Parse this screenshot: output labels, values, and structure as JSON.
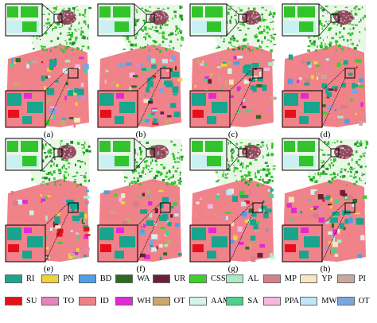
{
  "panels": [
    {
      "label": "(a)",
      "variant": 0
    },
    {
      "label": "(b)",
      "variant": 1
    },
    {
      "label": "(c)",
      "variant": 2
    },
    {
      "label": "(d)",
      "variant": 3
    },
    {
      "label": "(e)",
      "variant": 4
    },
    {
      "label": "(f)",
      "variant": 5
    },
    {
      "label": "(g)",
      "variant": 6
    },
    {
      "label": "(h)",
      "variant": 7
    }
  ],
  "legend": [
    {
      "code": "RI",
      "color": "#1aa58c"
    },
    {
      "code": "PN",
      "color": "#f2d23a"
    },
    {
      "code": "BD",
      "color": "#4e9ee8"
    },
    {
      "code": "WA",
      "color": "#2b6b1e"
    },
    {
      "code": "UR",
      "color": "#6a2036"
    },
    {
      "code": "CSS",
      "color": "#3bd12a"
    },
    {
      "code": "AL",
      "color": "#a9ecc3"
    },
    {
      "code": "MP",
      "color": "#d77e8c"
    },
    {
      "code": "YP",
      "color": "#f8e6c0"
    },
    {
      "code": "PI",
      "color": "#c8a89a"
    },
    {
      "code": "SU",
      "color": "#e5101c"
    },
    {
      "code": "TO",
      "color": "#e583ba"
    },
    {
      "code": "ID",
      "color": "#f08088"
    },
    {
      "code": "WH",
      "color": "#e12ad6"
    },
    {
      "code": "OT",
      "color": "#c8a86c"
    },
    {
      "code": "AAM",
      "color": "#d4f2ec"
    },
    {
      "code": "SA",
      "color": "#4fd08a"
    },
    {
      "code": "PPA",
      "color": "#f7b6e4"
    },
    {
      "code": "MW",
      "color": "#bfe6f6"
    },
    {
      "code": "OT",
      "color": "#79a6df"
    }
  ],
  "colors": {
    "background": "#ffffff",
    "frame": "#000000",
    "urban": "#8c3a52",
    "veg": "#31c42b",
    "field": "#f0828a",
    "rice": "#19a48e"
  }
}
